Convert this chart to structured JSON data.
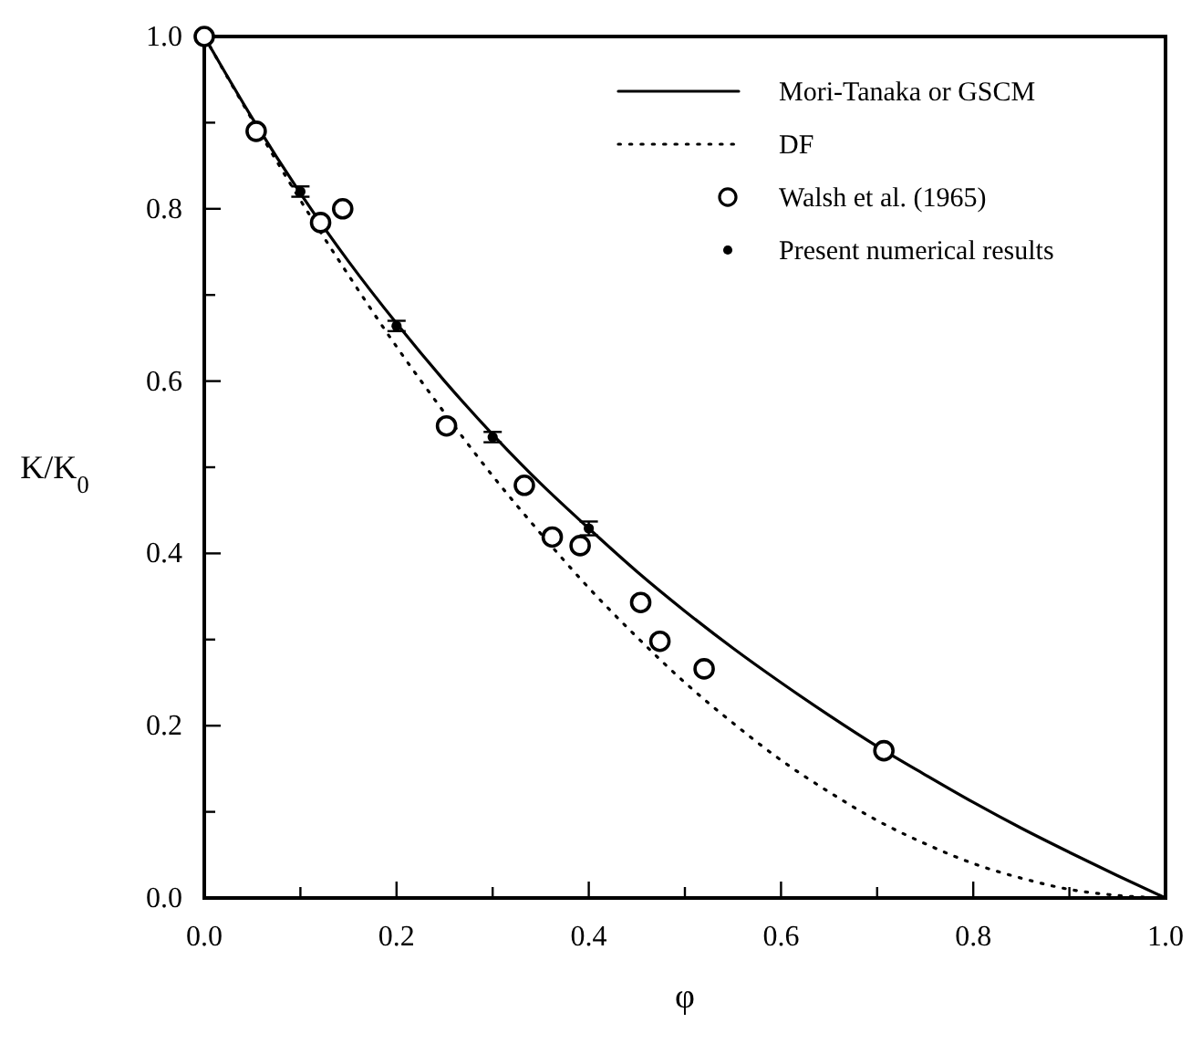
{
  "chart_data": {
    "type": "line",
    "xlabel": "φ",
    "ylabel": "K/K$_{0}$",
    "xlim": [
      0,
      1
    ],
    "ylim": [
      0,
      1
    ],
    "xticks": [
      {
        "value": 0,
        "label": "0.0"
      },
      {
        "value": 0.1,
        "label": null
      },
      {
        "value": 0.2,
        "label": "0.2"
      },
      {
        "value": 0.3,
        "label": null
      },
      {
        "value": 0.4,
        "label": "0.4"
      },
      {
        "value": 0.5,
        "label": null
      },
      {
        "value": 0.6,
        "label": "0.6"
      },
      {
        "value": 0.7,
        "label": null
      },
      {
        "value": 0.8,
        "label": "0.8"
      },
      {
        "value": 0.9,
        "label": null
      },
      {
        "value": 1.0,
        "label": "1.0"
      }
    ],
    "yticks": [
      {
        "value": 0,
        "label": "0.0"
      },
      {
        "value": 0.1,
        "label": null
      },
      {
        "value": 0.2,
        "label": "0.2"
      },
      {
        "value": 0.3,
        "label": null
      },
      {
        "value": 0.4,
        "label": "0.4"
      },
      {
        "value": 0.5,
        "label": null
      },
      {
        "value": 0.6,
        "label": "0.6"
      },
      {
        "value": 0.7,
        "label": null
      },
      {
        "value": 0.8,
        "label": "0.8"
      },
      {
        "value": 0.9,
        "label": null
      },
      {
        "value": 1.0,
        "label": "1.0"
      }
    ],
    "grid": false,
    "legend": "top right",
    "series": [
      {
        "name": "Mori-Tanaka or GSCM",
        "color": "#000000",
        "line_style": "solid",
        "x": [
          0,
          0.05,
          0.1,
          0.15,
          0.2,
          0.25,
          0.3,
          0.35,
          0.4,
          0.45,
          0.5,
          0.55,
          0.6,
          0.65,
          0.7,
          0.75,
          0.8,
          0.85,
          0.9,
          0.95,
          1.0
        ],
        "values": [
          1.0,
          0.905,
          0.818,
          0.739,
          0.667,
          0.6,
          0.538,
          0.481,
          0.429,
          0.379,
          0.333,
          0.29,
          0.25,
          0.212,
          0.176,
          0.143,
          0.111,
          0.081,
          0.053,
          0.026,
          0.0
        ]
      },
      {
        "name": "DF",
        "color": "#000000",
        "line_style": "dotted",
        "x": [
          0,
          0.05,
          0.1,
          0.15,
          0.2,
          0.25,
          0.3,
          0.35,
          0.4,
          0.45,
          0.5,
          0.55,
          0.6,
          0.65,
          0.7,
          0.75,
          0.8,
          0.85,
          0.9,
          0.95,
          1.0
        ],
        "values": [
          1.0,
          0.903,
          0.81,
          0.723,
          0.64,
          0.563,
          0.49,
          0.423,
          0.36,
          0.303,
          0.25,
          0.203,
          0.16,
          0.123,
          0.09,
          0.063,
          0.04,
          0.023,
          0.01,
          0.003,
          0.0
        ]
      },
      {
        "name": "Walsh et al. (1965)",
        "type": "scatter",
        "color": "#000000",
        "marker": "circle",
        "x": [
          0,
          0.054,
          0.121,
          0.144,
          0.252,
          0.333,
          0.362,
          0.391,
          0.454,
          0.474,
          0.52,
          0.707
        ],
        "values": [
          1.0,
          0.89,
          0.784,
          0.8,
          0.548,
          0.479,
          0.419,
          0.409,
          0.343,
          0.298,
          0.266,
          0.171
        ]
      },
      {
        "name": "Present numerical results",
        "type": "scatter",
        "color": "#000000",
        "marker": "circle",
        "x": [
          0.1,
          0.2,
          0.3,
          0.4
        ],
        "values": [
          0.82,
          0.664,
          0.535,
          0.429
        ],
        "errors": [
          0.006,
          0.006,
          0.006,
          0.008
        ]
      }
    ]
  }
}
